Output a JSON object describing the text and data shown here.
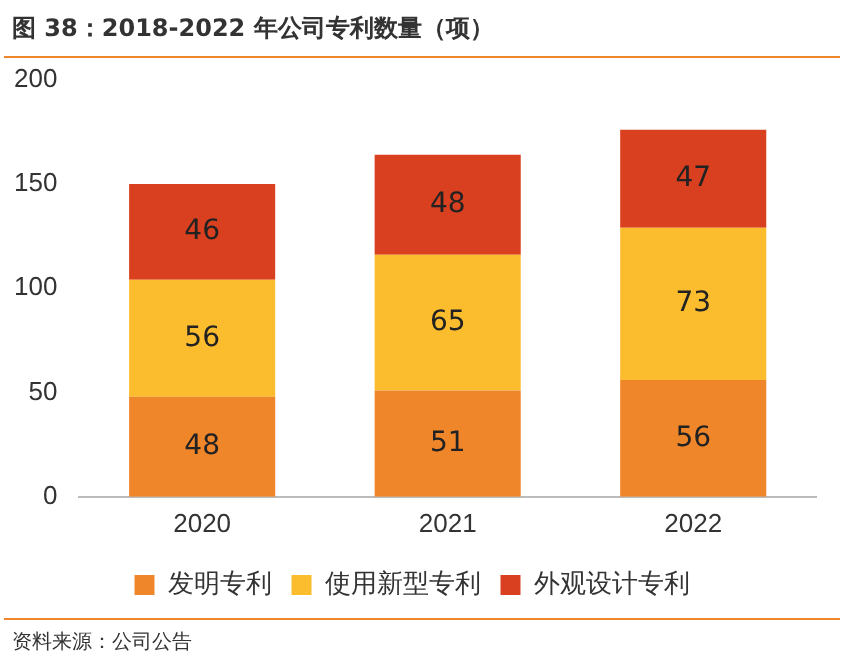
{
  "chart_data": {
    "type": "bar",
    "title": "图 38：2018-2022 年公司专利数量（项）",
    "categories": [
      "2020",
      "2021",
      "2022"
    ],
    "series": [
      {
        "name": "发明专利",
        "color": "#f0862a",
        "values": [
          48,
          51,
          56
        ]
      },
      {
        "name": "使用新型专利",
        "color": "#fbbd2e",
        "values": [
          56,
          65,
          73
        ]
      },
      {
        "name": "外观设计专利",
        "color": "#d9401f",
        "values": [
          46,
          48,
          47
        ]
      }
    ],
    "stacked": true,
    "ylim": [
      0,
      200
    ],
    "yticks": [
      0,
      50,
      100,
      150,
      200
    ],
    "grid": false,
    "legend": "bottom",
    "data_labels": true,
    "annotations": [
      "资料来源：公司公告"
    ]
  }
}
